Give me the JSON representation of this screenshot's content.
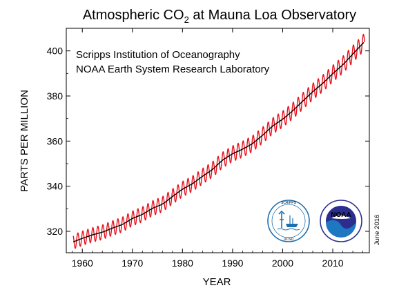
{
  "chart_data": {
    "type": "line",
    "title_prefix": "Atmospheric CO",
    "title_subscript": "2",
    "title_suffix": " at Mauna Loa Observatory",
    "annotations": [
      "Scripps Institution of Oceanography",
      "NOAA Earth System Research Laboratory"
    ],
    "xlabel": "YEAR",
    "ylabel": "PARTS PER MILLION",
    "date_stamp": "June 2016",
    "xlim": [
      1956.8,
      2017.3
    ],
    "ylim": [
      310.5,
      410
    ],
    "x_ticks": [
      1960,
      1970,
      1980,
      1990,
      2000,
      2010
    ],
    "y_ticks": [
      320,
      340,
      360,
      380,
      400
    ],
    "x_tick_labels": [
      "1960",
      "1970",
      "1980",
      "1990",
      "2000",
      "2010"
    ],
    "y_tick_labels": [
      "320",
      "340",
      "360",
      "380",
      "400"
    ],
    "grid": false,
    "series": [
      {
        "kind": "annual-trend",
        "color": "#000000",
        "x": [
          1958.2,
          1960,
          1962,
          1964,
          1966,
          1968,
          1970,
          1972,
          1974,
          1976,
          1978,
          1980,
          1982,
          1984,
          1986,
          1988,
          1990,
          1992,
          1994,
          1996,
          1998,
          2000,
          2002,
          2004,
          2006,
          2008,
          2010,
          2012,
          2014,
          2016.4
        ],
        "values": [
          315.3,
          316.9,
          318.4,
          319.6,
          321.4,
          323.0,
          325.7,
          327.5,
          330.2,
          332.0,
          335.4,
          338.7,
          341.1,
          344.4,
          347.4,
          351.6,
          354.4,
          356.4,
          358.9,
          362.6,
          366.7,
          369.7,
          373.4,
          377.7,
          381.9,
          385.6,
          389.9,
          393.8,
          398.6,
          404.2
        ]
      },
      {
        "kind": "monthly-mean",
        "color": "#e8101b",
        "seasonal_amplitude_ppm": 3.2,
        "cycle_years": 1
      }
    ]
  },
  "logos": [
    {
      "name": "scripps-logo",
      "text": "SCRIPPS INSTITUTION OF OCEANOGRAPHY · UCSD",
      "color": "#1f6fb0"
    },
    {
      "name": "noaa-logo",
      "text": "NOAA",
      "ring_text": "NATIONAL OCEANIC AND ATMOSPHERIC ADMINISTRATION · U.S. DEPARTMENT OF COMMERCE",
      "colors": [
        "#2b2e8f",
        "#1d78c1",
        "#ffffff"
      ]
    }
  ]
}
